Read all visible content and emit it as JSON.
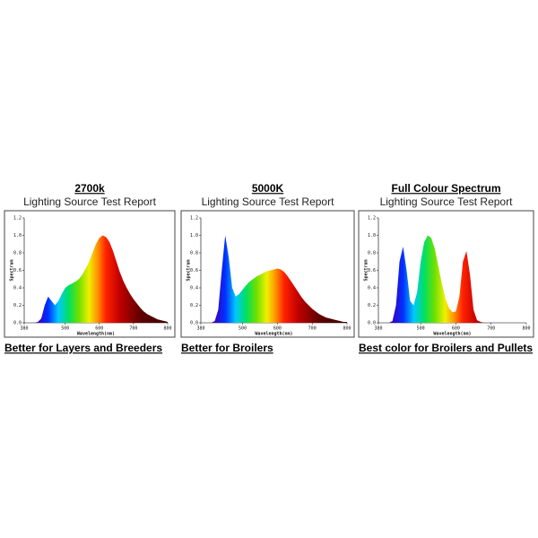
{
  "chart_data": [
    {
      "type": "area",
      "title": "2700k",
      "subtitle": "Lighting Source Test Report",
      "caption": "Better for Layers and Breeders",
      "x_label": "Wavelength(nm)",
      "y_label": "Spectrum",
      "x": [
        380,
        390,
        400,
        410,
        420,
        430,
        440,
        450,
        460,
        470,
        480,
        490,
        500,
        510,
        520,
        530,
        540,
        550,
        560,
        570,
        580,
        590,
        600,
        610,
        620,
        630,
        640,
        650,
        660,
        670,
        680,
        690,
        700,
        710,
        720,
        730,
        740,
        750,
        760,
        770,
        780,
        790,
        800
      ],
      "values": [
        0,
        0,
        0,
        0,
        0.01,
        0.05,
        0.2,
        0.3,
        0.25,
        0.2,
        0.25,
        0.33,
        0.4,
        0.43,
        0.45,
        0.47,
        0.5,
        0.55,
        0.62,
        0.7,
        0.8,
        0.9,
        0.97,
        1.0,
        0.98,
        0.92,
        0.82,
        0.7,
        0.58,
        0.48,
        0.4,
        0.33,
        0.27,
        0.22,
        0.17,
        0.13,
        0.1,
        0.08,
        0.06,
        0.04,
        0.03,
        0.02,
        0.01
      ],
      "xlim": [
        380,
        800
      ],
      "xticks": [
        380,
        500,
        600,
        700,
        800
      ],
      "ylim": [
        0,
        1.2
      ],
      "yticks": [
        {
          "value": 0,
          "label": "0.0"
        },
        {
          "value": 0.2,
          "label": "0.2"
        },
        {
          "value": 0.4,
          "label": "0.4"
        },
        {
          "value": 0.6,
          "label": "0.6"
        },
        {
          "value": 0.8,
          "label": "0.8"
        },
        {
          "value": 1,
          "label": "1.0"
        },
        {
          "value": 1.2,
          "label": "1.2"
        }
      ]
    },
    {
      "type": "area",
      "title": "5000K",
      "subtitle": "Lighting Source Test Report",
      "caption": "Better for Broilers",
      "x_label": "Wavelength(nm)",
      "y_label": "Spectrum",
      "x": [
        380,
        390,
        400,
        410,
        420,
        430,
        440,
        450,
        460,
        470,
        480,
        490,
        500,
        510,
        520,
        530,
        540,
        550,
        560,
        570,
        580,
        590,
        600,
        610,
        620,
        630,
        640,
        650,
        660,
        670,
        680,
        690,
        700,
        710,
        720,
        730,
        740,
        750,
        760,
        770,
        780,
        790,
        800
      ],
      "values": [
        0,
        0,
        0,
        0,
        0.02,
        0.15,
        0.6,
        1.0,
        0.75,
        0.4,
        0.3,
        0.33,
        0.38,
        0.43,
        0.47,
        0.5,
        0.53,
        0.55,
        0.57,
        0.59,
        0.6,
        0.61,
        0.62,
        0.61,
        0.58,
        0.53,
        0.47,
        0.41,
        0.35,
        0.29,
        0.24,
        0.2,
        0.16,
        0.13,
        0.1,
        0.08,
        0.06,
        0.05,
        0.04,
        0.03,
        0.02,
        0.01,
        0.01
      ],
      "xlim": [
        380,
        800
      ],
      "xticks": [
        380,
        500,
        600,
        700,
        800
      ],
      "ylim": [
        0,
        1.2
      ],
      "yticks": [
        {
          "value": 0,
          "label": "0.0"
        },
        {
          "value": 0.2,
          "label": "0.2"
        },
        {
          "value": 0.4,
          "label": "0.4"
        },
        {
          "value": 0.6,
          "label": "0.6"
        },
        {
          "value": 0.8,
          "label": "0.8"
        },
        {
          "value": 1,
          "label": "1.0"
        },
        {
          "value": 1.2,
          "label": "1.2"
        }
      ]
    },
    {
      "type": "area",
      "title": "Full Colour Spectrum",
      "subtitle": "Lighting Source Test Report",
      "caption": "Best color for Broilers and Pullets",
      "x_label": "Wavelength(nm)",
      "y_label": "Spectrum",
      "x": [
        380,
        390,
        400,
        410,
        420,
        430,
        440,
        450,
        460,
        470,
        480,
        490,
        500,
        510,
        520,
        530,
        540,
        550,
        560,
        570,
        580,
        590,
        600,
        610,
        620,
        630,
        640,
        650,
        660,
        670,
        680,
        690,
        700,
        710,
        720,
        730,
        740,
        750,
        760,
        770,
        780,
        790,
        800
      ],
      "values": [
        0,
        0,
        0,
        0,
        0.02,
        0.2,
        0.7,
        0.87,
        0.6,
        0.25,
        0.2,
        0.35,
        0.7,
        0.92,
        1.0,
        0.97,
        0.85,
        0.65,
        0.45,
        0.28,
        0.17,
        0.12,
        0.13,
        0.3,
        0.7,
        0.82,
        0.55,
        0.15,
        0.03,
        0.01,
        0,
        0,
        0,
        0,
        0,
        0,
        0,
        0,
        0,
        0,
        0,
        0,
        0
      ],
      "xlim": [
        380,
        800
      ],
      "xticks": [
        380,
        500,
        600,
        700,
        800
      ],
      "ylim": [
        0,
        1.2
      ],
      "yticks": [
        {
          "value": 0,
          "label": "0.0"
        },
        {
          "value": 0.2,
          "label": "0.2"
        },
        {
          "value": 0.4,
          "label": "0.4"
        },
        {
          "value": 0.6,
          "label": "0.6"
        },
        {
          "value": 0.8,
          "label": "0.8"
        },
        {
          "value": 1,
          "label": "1.0"
        },
        {
          "value": 1.2,
          "label": "1.2"
        }
      ]
    }
  ]
}
